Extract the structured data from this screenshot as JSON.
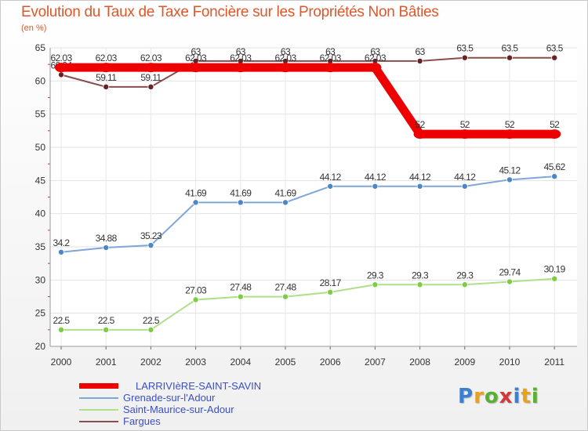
{
  "chart_data": {
    "type": "line",
    "title": "Evolution du Taux de Taxe Foncière sur les Propriétés Non Bâties",
    "subtitle": "(en %)",
    "x": [
      "2000",
      "2001",
      "2002",
      "2003",
      "2004",
      "2005",
      "2006",
      "2007",
      "2008",
      "2009",
      "2010",
      "2011"
    ],
    "ylim": [
      20,
      65
    ],
    "yticks": [
      "20",
      "25",
      "30",
      "35",
      "40",
      "45",
      "50",
      "55",
      "60",
      "65"
    ],
    "grid": true,
    "series": [
      {
        "name": "LARRIVIèRE-SAINT-SAVIN",
        "color": "#ee0000",
        "values": [
          62.03,
          62.03,
          62.03,
          62.03,
          62.03,
          62.03,
          62.03,
          62.03,
          52,
          52,
          52,
          52
        ],
        "labels": [
          "62.03",
          "62.03",
          "62.03",
          "62.03",
          "62.03",
          "62.03",
          "62.03",
          "62.03",
          "52",
          "52",
          "52",
          "52"
        ]
      },
      {
        "name": "Grenade-sur-l'Adour",
        "color": "#7ea6d8",
        "markerColor": "#4a86c8",
        "values": [
          34.2,
          34.88,
          35.23,
          41.69,
          41.69,
          41.69,
          44.12,
          44.12,
          44.12,
          44.12,
          45.12,
          45.62
        ],
        "labels": [
          "34.2",
          "34.88",
          "35.23",
          "41.69",
          "41.69",
          "41.69",
          "44.12",
          "44.12",
          "44.12",
          "44.12",
          "45.12",
          "45.62"
        ]
      },
      {
        "name": "Saint-Maurice-sur-Adour",
        "color": "#aee08a",
        "markerColor": "#7ccc44",
        "values": [
          22.5,
          22.5,
          22.5,
          27.03,
          27.48,
          27.48,
          28.17,
          29.3,
          29.3,
          29.3,
          29.74,
          30.19
        ],
        "labels": [
          "22.5",
          "22.5",
          "22.5",
          "27.03",
          "27.48",
          "27.48",
          "28.17",
          "29.3",
          "29.3",
          "29.3",
          "29.74",
          "30.19"
        ]
      },
      {
        "name": "Fargues",
        "color": "#8a4c4c",
        "markerColor": "#6a2222",
        "values": [
          60.94,
          59.11,
          59.11,
          63,
          63,
          63,
          63,
          63,
          63,
          63.5,
          63.5,
          63.5
        ],
        "labels": [
          "60.94",
          "59.11",
          "59.11",
          "63",
          "63",
          "63",
          "63",
          "63",
          "63",
          "63.5",
          "63.5",
          "63.5"
        ]
      }
    ]
  },
  "logo": {
    "text": "Proxiti",
    "letters": [
      "P",
      "r",
      "o",
      "x",
      "i",
      "t",
      "i"
    ]
  }
}
